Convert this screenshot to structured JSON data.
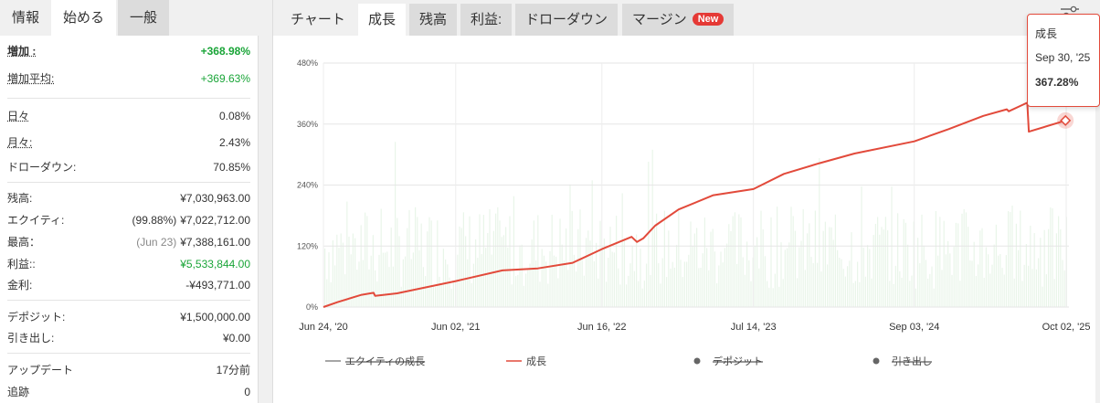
{
  "left_tabs": [
    "情報",
    "始める",
    "一般"
  ],
  "stats": {
    "gain": {
      "label": "増加 :",
      "value": "+368.98%"
    },
    "abs_gain": {
      "label": "増加平均:",
      "value": "+369.63%"
    },
    "daily": {
      "label": "日々",
      "value": "0.08%"
    },
    "monthly": {
      "label": "月々:",
      "value": "2.43%"
    },
    "drawdown": {
      "label": "ドローダウン:",
      "value": "70.85%"
    },
    "balance": {
      "label": "残高:",
      "value": "¥7,030,963.00"
    },
    "equity": {
      "label": "エクイティ:",
      "prefix": "(99.88%)",
      "value": "¥7,022,712.00"
    },
    "highest": {
      "label": "最高：",
      "prefix": "(Jun 23)",
      "value": "¥7,388,161.00"
    },
    "profit": {
      "label": "利益::",
      "value": "¥5,533,844.00"
    },
    "interest": {
      "label": "金利:",
      "value": "-¥493,771.00"
    },
    "deposits": {
      "label": "デポジット:",
      "value": "¥1,500,000.00"
    },
    "withdrawals": {
      "label": "引き出し:",
      "value": "¥0.00"
    },
    "updated": {
      "label": "アップデート",
      "value": "17分前"
    },
    "tracking": {
      "label": "追跡",
      "value": "0"
    }
  },
  "chart_tabs": [
    "チャート",
    "成長",
    "残高",
    "利益:",
    "ドローダウン",
    "マージン"
  ],
  "new_badge": "New",
  "tooltip": {
    "title": "成長",
    "date": "Sep 30, '25",
    "value": "367.28%"
  },
  "chart_data": {
    "type": "line",
    "y_ticks": [
      "480%",
      "360%",
      "240%",
      "120%",
      "0%"
    ],
    "x_ticks": [
      "Jun 24, '20",
      "Jun 02, '21",
      "Jun 16, '22",
      "Jul 14, '23",
      "Sep 03, '24",
      "Oct 02, '25"
    ],
    "ylim": [
      0,
      480
    ],
    "grid": true,
    "legend_placement": "bottom",
    "legend": [
      {
        "name": "エクイティの成長",
        "color": "#888888",
        "disabled": true
      },
      {
        "name": "成長",
        "color": "#e24a3b",
        "disabled": false
      },
      {
        "name": "デポジット",
        "color": "#666666",
        "disabled": true
      },
      {
        "name": "引き出し",
        "color": "#666666",
        "disabled": true
      }
    ],
    "series": [
      {
        "name": "成長",
        "color": "#e24a3b",
        "x": [
          "2020-06-24",
          "2020-08-01",
          "2020-10-01",
          "2020-11-01",
          "2020-11-05",
          "2021-01-01",
          "2021-06-02",
          "2021-10-01",
          "2022-01-01",
          "2022-04-01",
          "2022-06-16",
          "2022-09-01",
          "2022-09-15",
          "2022-10-01",
          "2022-11-01",
          "2023-01-01",
          "2023-04-01",
          "2023-07-14",
          "2023-10-01",
          "2024-01-01",
          "2024-04-01",
          "2024-09-03",
          "2024-12-01",
          "2025-03-01",
          "2025-05-01",
          "2025-05-06",
          "2025-06-23",
          "2025-06-27",
          "2025-09-30"
        ],
        "y": [
          0,
          10,
          24,
          28,
          22,
          27,
          51,
          72,
          76,
          87,
          114,
          138,
          128,
          135,
          160,
          192,
          220,
          232,
          262,
          283,
          302,
          326,
          350,
          376,
          389,
          385,
          402,
          345,
          367
        ]
      }
    ],
    "bars": {
      "name": "エクイティの成長",
      "color": "#cfe9cf"
    }
  }
}
